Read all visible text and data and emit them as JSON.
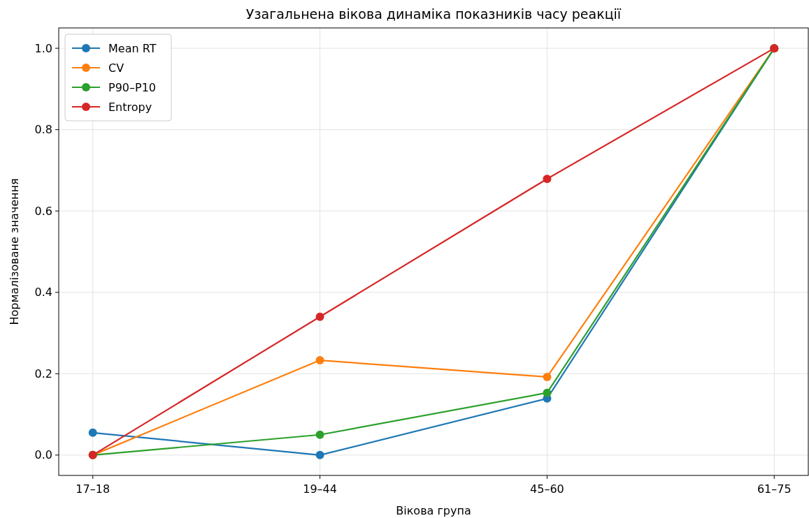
{
  "chart_data": {
    "type": "line",
    "title": "Узагальнена вікова динаміка показників часу реакції",
    "xlabel": "Вікова група",
    "ylabel": "Нормалізоване значення",
    "categories": [
      "17–18",
      "19–44",
      "45–60",
      "61–75"
    ],
    "series": [
      {
        "name": "Mean RT",
        "color": "#1f77b4",
        "values": [
          0.055,
          0,
          0.139,
          1
        ]
      },
      {
        "name": "CV",
        "color": "#ff7f0e",
        "values": [
          0,
          0.233,
          0.192,
          1
        ]
      },
      {
        "name": "P90–P10",
        "color": "#2ca02c",
        "values": [
          0,
          0.05,
          0.153,
          1
        ]
      },
      {
        "name": "Entropy",
        "color": "#d62728",
        "values": [
          0,
          0.34,
          0.679,
          1
        ]
      }
    ],
    "ylim": [
      -0.05,
      1.05
    ],
    "yticks": [
      {
        "value": 0,
        "label": "0.0"
      },
      {
        "value": 0.2,
        "label": "0.2"
      },
      {
        "value": 0.4,
        "label": "0.4"
      },
      {
        "value": 0.6,
        "label": "0.6"
      },
      {
        "value": 0.8,
        "label": "0.8"
      },
      {
        "value": 1,
        "label": "1.0"
      }
    ],
    "grid": true,
    "legend": "top left",
    "marker": "circle",
    "line_style": "solid"
  }
}
